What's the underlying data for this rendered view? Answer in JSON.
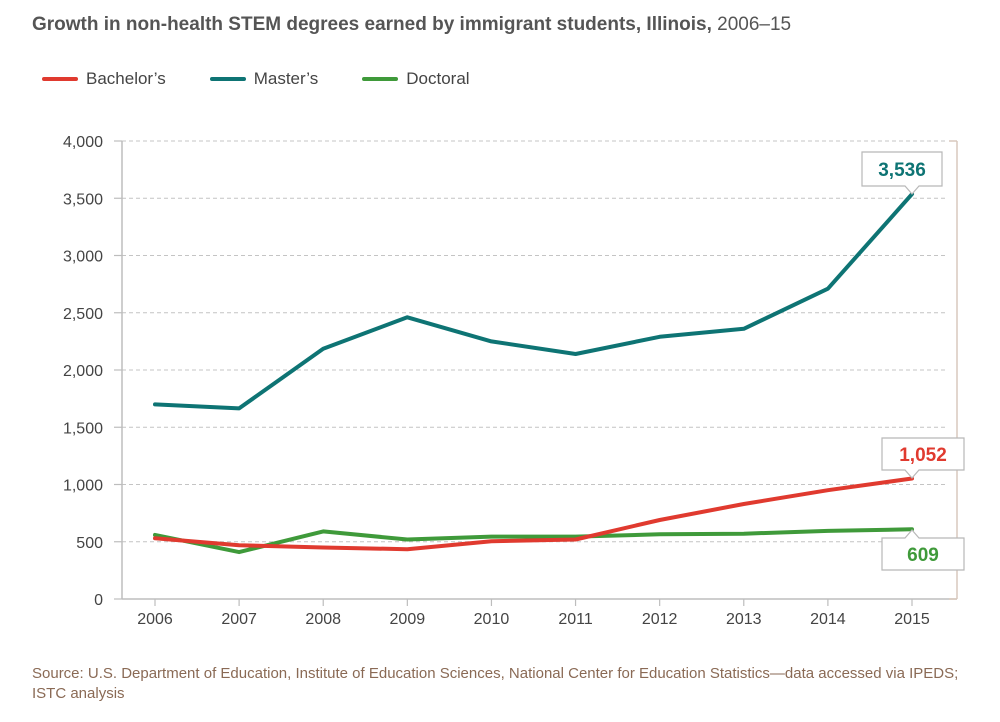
{
  "title": {
    "main": "Growth in non-health STEM degrees earned by immigrant students, Illinois,",
    "years": "2006–15"
  },
  "source": "Source: U.S. Department of Education, Institute of Education Sciences, National Center for Education Statistics—data accessed via IPEDS; ISTC analysis",
  "chart_data": {
    "type": "line",
    "title": "Growth in non-health STEM degrees earned by immigrant students, Illinois, 2006–15",
    "x": [
      "2006",
      "2007",
      "2008",
      "2009",
      "2010",
      "2011",
      "2012",
      "2013",
      "2014",
      "2015"
    ],
    "xlabel": "",
    "ylabel": "",
    "ylim": [
      0,
      4000
    ],
    "yticks": [
      0,
      500,
      1000,
      1500,
      2000,
      2500,
      3000,
      3500,
      4000
    ],
    "ytick_labels": [
      "0",
      "500",
      "1,000",
      "1,500",
      "2,000",
      "2,500",
      "3,000",
      "3,500",
      "4,000"
    ],
    "grid": "horizontal dashed",
    "legend_position": "top-left",
    "series": [
      {
        "name": "Bachelor’s",
        "color": "#e03a2f",
        "values": [
          530,
          470,
          450,
          435,
          505,
          520,
          690,
          830,
          950,
          1052
        ],
        "end_label": "1,052"
      },
      {
        "name": "Master’s",
        "color": "#0e7474",
        "values": [
          1700,
          1665,
          2185,
          2460,
          2250,
          2140,
          2290,
          2360,
          2710,
          3536
        ],
        "end_label": "3,536"
      },
      {
        "name": "Doctoral",
        "color": "#3f9a3a",
        "values": [
          560,
          410,
          590,
          520,
          545,
          545,
          565,
          570,
          595,
          609
        ],
        "end_label": "609"
      }
    ]
  }
}
